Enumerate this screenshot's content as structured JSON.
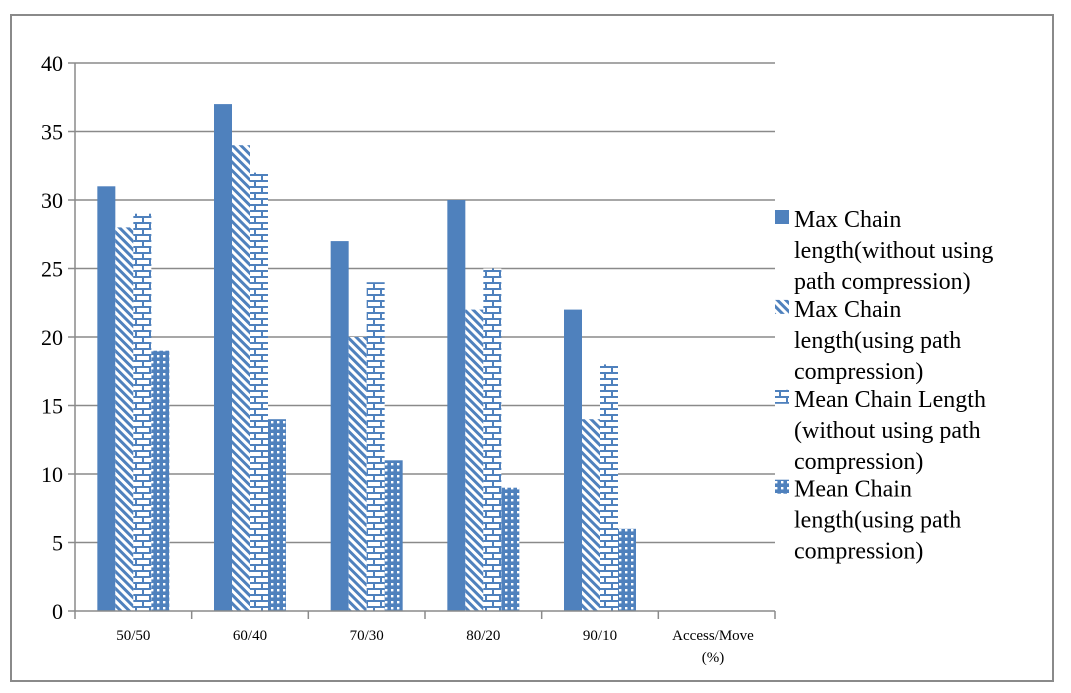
{
  "chart_data": {
    "type": "bar",
    "title": "",
    "xlabel": "Access/Move (%)",
    "xlabel_lines": [
      "Access/Move",
      "(%)"
    ],
    "ylabel": "",
    "ylim": [
      0,
      40
    ],
    "yticks": [
      0,
      5,
      10,
      15,
      20,
      25,
      30,
      35,
      40
    ],
    "grid": true,
    "legend_position": "right",
    "categories": [
      "50/50",
      "60/40",
      "70/30",
      "80/20",
      "90/10"
    ],
    "series": [
      {
        "name": "Max Chain length(without using path compression)",
        "legend_lines": [
          "Max Chain",
          "length(without using",
          "path compression)"
        ],
        "pattern": "solid",
        "color": "#4f81bd",
        "values": [
          31,
          37,
          27,
          30,
          22
        ]
      },
      {
        "name": "Max Chain length(using path compression)",
        "legend_lines": [
          "Max Chain",
          "length(using path",
          "compression)"
        ],
        "pattern": "diagonal",
        "color": "#4f81bd",
        "values": [
          28,
          34,
          20,
          22,
          14
        ]
      },
      {
        "name": "Mean Chain Length (without using path compression)",
        "legend_lines": [
          "Mean Chain Length",
          "(without using path",
          "compression)"
        ],
        "pattern": "brick",
        "color": "#4f81bd",
        "values": [
          29,
          32,
          24,
          25,
          18
        ]
      },
      {
        "name": "Mean Chain length(using path compression)",
        "legend_lines": [
          "Mean Chain",
          "length(using path",
          "compression)"
        ],
        "pattern": "grid",
        "color": "#4f81bd",
        "values": [
          19,
          14,
          11,
          9,
          6
        ]
      }
    ]
  }
}
